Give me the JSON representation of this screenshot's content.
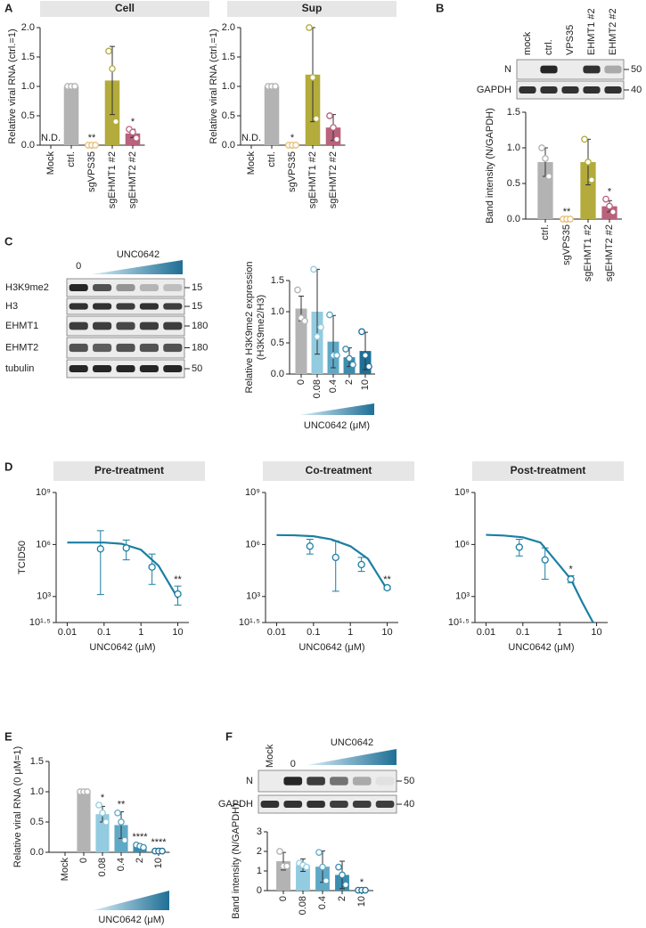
{
  "panel_labels": [
    "A",
    "B",
    "C",
    "D",
    "E",
    "F"
  ],
  "blots": [
    {
      "lane_labels": [
        "mock",
        "ctrl.",
        "VPS35",
        "EHMT1 #2",
        "EHMT2 #2"
      ],
      "rows": [
        {
          "label": "N",
          "marker": 50
        },
        {
          "label": "GAPDH",
          "marker": 40
        }
      ]
    },
    {
      "lane_labels": [
        "0"
      ],
      "treatment": "UNC0642",
      "rows": [
        {
          "label": "H3K9me2",
          "marker": 15
        },
        {
          "label": "H3",
          "marker": 15
        },
        {
          "label": "EHMT1",
          "marker": 180
        },
        {
          "label": "EHMT2",
          "marker": 180
        },
        {
          "label": "tubulin",
          "marker": 50
        }
      ]
    },
    {
      "lane_labels": [
        "Mock",
        "0"
      ],
      "treatment": "UNC0642",
      "rows": [
        {
          "label": "N",
          "marker": 50
        },
        {
          "label": "GAPDH",
          "marker": 40
        }
      ]
    }
  ],
  "chart_data": [
    {
      "type": "bar",
      "title": "Cell",
      "ylabel": "Relative viral RNA (ctrl.=1)",
      "categories": [
        "Mock",
        "ctrl.",
        "sgVPS35",
        "sgEHMT1 #2",
        "sgEHMT2 #2"
      ],
      "values": [
        null,
        1,
        0,
        1.1,
        0.2
      ],
      "errors": [
        null,
        0,
        0,
        0.58,
        0.07
      ],
      "points": [
        null,
        [
          1,
          1,
          1
        ],
        [
          0,
          0,
          0
        ],
        [
          1.6,
          1.3,
          0.4
        ],
        [
          0.27,
          0.22,
          0.12
        ]
      ],
      "annotations": [
        "N.D.",
        null,
        "**",
        null,
        "*"
      ],
      "colors": [
        null,
        "#b3b3b3",
        "#e8c07a",
        "#b3ac3c",
        "#b8627c"
      ],
      "ylim": [
        0,
        2
      ],
      "yticks": [
        {
          "value": 0,
          "label": "0.0"
        },
        0.5,
        {
          "value": 1,
          "label": "1.0"
        },
        1.5,
        {
          "value": 2,
          "label": "2.0"
        }
      ]
    },
    {
      "type": "bar",
      "title": "Sup",
      "ylabel": "Relative viral RNA (ctrl.=1)",
      "categories": [
        "Mock",
        "ctrl.",
        "sgVPS35",
        "sgEHMT1 #2",
        "sgEHMT2 #2"
      ],
      "values": [
        null,
        1,
        0,
        1.2,
        0.3
      ],
      "errors": [
        null,
        0,
        0,
        0.8,
        0.22
      ],
      "points": [
        null,
        [
          1,
          1,
          1
        ],
        [
          0,
          0,
          0
        ],
        [
          2.0,
          1.15,
          0.45
        ],
        [
          0.5,
          0.3,
          0.1
        ]
      ],
      "annotations": [
        "N.D.",
        null,
        "*",
        null,
        null
      ],
      "colors": [
        null,
        "#b3b3b3",
        "#e8c07a",
        "#b3ac3c",
        "#b8627c"
      ],
      "ylim": [
        0,
        2
      ],
      "yticks": [
        {
          "value": 0,
          "label": "0.0"
        },
        0.5,
        {
          "value": 1,
          "label": "1.0"
        },
        1.5,
        {
          "value": 2,
          "label": "2.0"
        }
      ]
    },
    {
      "type": "bar",
      "ylabel": "Band intensity (N/GAPDH)",
      "categories": [
        "ctrl.",
        "sgVPS35",
        "sgEHMT1 #2",
        "sgEHMT2 #2"
      ],
      "values": [
        0.8,
        0,
        0.8,
        0.18
      ],
      "errors": [
        0.2,
        0,
        0.32,
        0.08
      ],
      "points": [
        [
          1.0,
          0.85,
          0.6
        ],
        [
          0,
          0,
          0
        ],
        [
          1.12,
          0.8,
          0.55
        ],
        [
          0.28,
          0.18,
          0.1
        ]
      ],
      "annotations": [
        null,
        "**",
        null,
        "*"
      ],
      "colors": [
        "#b3b3b3",
        "#e8c07a",
        "#b3ac3c",
        "#b8627c"
      ],
      "ylim": [
        0,
        1.5
      ],
      "yticks": [
        {
          "value": 0,
          "label": "0.0"
        },
        0.5,
        {
          "value": 1,
          "label": "1.0"
        },
        1.5
      ]
    },
    {
      "type": "bar",
      "ylabel": [
        "Relative H3K9me2 expression",
        "(H3K9me2/H3)"
      ],
      "xlabel": "UNC0642 (μM)",
      "categories": [
        "0",
        "0.08",
        "0.4",
        "2",
        "10"
      ],
      "values": [
        1.05,
        1.0,
        0.52,
        0.27,
        0.37
      ],
      "errors": [
        0.2,
        0.68,
        0.42,
        0.15,
        0.3
      ],
      "points": [
        [
          1.35,
          0.9,
          0.85
        ],
        [
          1.68,
          0.6,
          0.75
        ],
        [
          0.95,
          0.3,
          0.3
        ],
        [
          0.4,
          0.25,
          0.15
        ],
        [
          0.68,
          0.3,
          0.12
        ]
      ],
      "annotations": [
        null,
        null,
        null,
        null,
        null
      ],
      "colors": [
        "#b3b3b3",
        "#93cbe0",
        "#5fa9c7",
        "#3b8db0",
        "#1f6f96"
      ],
      "ylim": [
        0,
        1.5
      ],
      "yticks": [
        {
          "value": 0,
          "label": "0.0"
        },
        0.5,
        {
          "value": 1,
          "label": "1.0"
        },
        1.5
      ]
    },
    {
      "type": "line",
      "title": "Pre-treatment",
      "ylabel": "TCID50",
      "xlabel": "UNC0642 (μM)",
      "color": "#1b7fa3",
      "x": [
        0.08,
        0.4,
        2,
        10
      ],
      "values": [
        560000.0,
        630000.0,
        50000.0,
        1400.0
      ],
      "ylow": [
        1300.0,
        130000.0,
        5000.0,
        320
      ],
      "yhigh": [
        6300000.0,
        1800000.0,
        280000.0,
        4000.0
      ],
      "annotations": [
        null,
        null,
        null,
        "**"
      ],
      "fit_x": [
        0.01,
        0.03,
        0.1,
        0.3,
        1,
        3,
        10
      ],
      "fit_values": [
        1300000.0,
        1300000.0,
        1300000.0,
        1100000.0,
        500000.0,
        60000.0,
        800
      ],
      "xlog": true,
      "ylog": true,
      "xlim": [
        0.005,
        20
      ],
      "xticks": [
        0.01,
        0.1,
        1,
        10
      ],
      "ylim": [
        31.6,
        1000000000.0
      ],
      "yticks": [
        {
          "value": 1000000000.0,
          "label": "10⁹"
        },
        {
          "value": 1000000.0,
          "label": "10⁶"
        },
        {
          "value": 1000.0,
          "label": "10³"
        },
        {
          "value": 31.6,
          "label": "10¹·⁵"
        }
      ]
    },
    {
      "type": "line",
      "title": "Co-treatment",
      "xlabel": "UNC0642 (μM)",
      "color": "#1b7fa3",
      "x": [
        0.08,
        0.4,
        2,
        10
      ],
      "values": [
        800000.0,
        180000.0,
        70000.0,
        3200.0
      ],
      "ylow": [
        280000.0,
        2000.0,
        28000.0,
        2500.0
      ],
      "yhigh": [
        2000000.0,
        1600000.0,
        180000.0,
        4000.0
      ],
      "annotations": [
        null,
        null,
        null,
        "**"
      ],
      "fit_x": [
        0.01,
        0.03,
        0.1,
        0.3,
        1,
        3,
        10
      ],
      "fit_values": [
        3500000.0,
        3400000.0,
        3000000.0,
        2000000.0,
        800000.0,
        150000.0,
        2500.0
      ],
      "xlog": true,
      "ylog": true,
      "xlim": [
        0.005,
        20
      ],
      "xticks": [
        0.01,
        0.1,
        1,
        10
      ],
      "ylim": [
        31.6,
        1000000000.0
      ],
      "yticks": [
        {
          "value": 1000000000.0,
          "label": "10⁹"
        },
        {
          "value": 1000000.0,
          "label": "10⁶"
        },
        {
          "value": 1000.0,
          "label": "10³"
        },
        {
          "value": 31.6,
          "label": "10¹·⁵"
        }
      ]
    },
    {
      "type": "line",
      "title": "Post-treatment",
      "xlabel": "UNC0642 (μM)",
      "color": "#1b7fa3",
      "x": [
        0.08,
        0.4,
        2
      ],
      "values": [
        700000.0,
        130000.0,
        10000.0
      ],
      "ylow": [
        220000.0,
        10000.0,
        6300.0
      ],
      "yhigh": [
        2000000.0,
        630000.0,
        16000.0
      ],
      "annotations": [
        null,
        null,
        "*"
      ],
      "fit_x": [
        0.01,
        0.03,
        0.1,
        0.3,
        1,
        2,
        4,
        8
      ],
      "fit_values": [
        3600000.0,
        3300000.0,
        2600000.0,
        1300000.0,
        60000.0,
        10000.0,
        500,
        32
      ],
      "xlog": true,
      "ylog": true,
      "xlim": [
        0.005,
        20
      ],
      "xticks": [
        0.01,
        0.1,
        1,
        10
      ],
      "ylim": [
        31.6,
        1000000000.0
      ],
      "yticks": [
        {
          "value": 1000000000.0,
          "label": "10⁹"
        },
        {
          "value": 1000000.0,
          "label": "10⁶"
        },
        {
          "value": 1000.0,
          "label": "10³"
        },
        {
          "value": 31.6,
          "label": "10¹·⁵"
        }
      ]
    },
    {
      "type": "bar",
      "ylabel": "Relative viral RNA (0 μM=1)",
      "xlabel": "UNC0642 (μM)",
      "categories": [
        "Mock",
        "0",
        "0.08",
        "0.4",
        "2",
        "10"
      ],
      "values": [
        null,
        1,
        0.63,
        0.45,
        0.1,
        0.02
      ],
      "errors": [
        null,
        0,
        0.13,
        0.22,
        0.03,
        0.02
      ],
      "points": [
        null,
        [
          1,
          1,
          1
        ],
        [
          0.78,
          0.65,
          0.5
        ],
        [
          0.65,
          0.5,
          0.2
        ],
        [
          0.12,
          0.1,
          0.08
        ],
        [
          0.02,
          0.02,
          0.02
        ]
      ],
      "annotations": [
        null,
        null,
        "*",
        "**",
        "****",
        "****"
      ],
      "colors": [
        null,
        "#b3b3b3",
        "#93cbe0",
        "#5fa9c7",
        "#3b8db0",
        "#1f6f96"
      ],
      "ylim": [
        0,
        1.5
      ],
      "yticks": [
        {
          "value": 0,
          "label": "0.0"
        },
        0.5,
        {
          "value": 1,
          "label": "1.0"
        },
        1.5
      ]
    },
    {
      "type": "bar",
      "ylabel": "Band intensity (N/GAPDH)",
      "categories": [
        "0",
        "0.08",
        "0.4",
        "2",
        "10"
      ],
      "values": [
        1.5,
        1.3,
        1.22,
        0.8,
        0.02
      ],
      "errors": [
        0.45,
        0.32,
        0.8,
        0.7,
        0.02
      ],
      "points": [
        [
          2.0,
          1.25,
          1.25
        ],
        [
          1.4,
          1.3,
          1.2
        ],
        [
          1.95,
          1.2,
          0.5
        ],
        [
          1.2,
          0.8,
          0.3
        ],
        [
          0.02,
          0.02,
          0.02
        ]
      ],
      "annotations": [
        null,
        null,
        null,
        null,
        "*"
      ],
      "colors": [
        "#b3b3b3",
        "#93cbe0",
        "#5fa9c7",
        "#3b8db0",
        "#1f6f96"
      ],
      "ylim": [
        0,
        3
      ],
      "yticks": [
        0,
        1,
        2,
        3
      ]
    }
  ]
}
